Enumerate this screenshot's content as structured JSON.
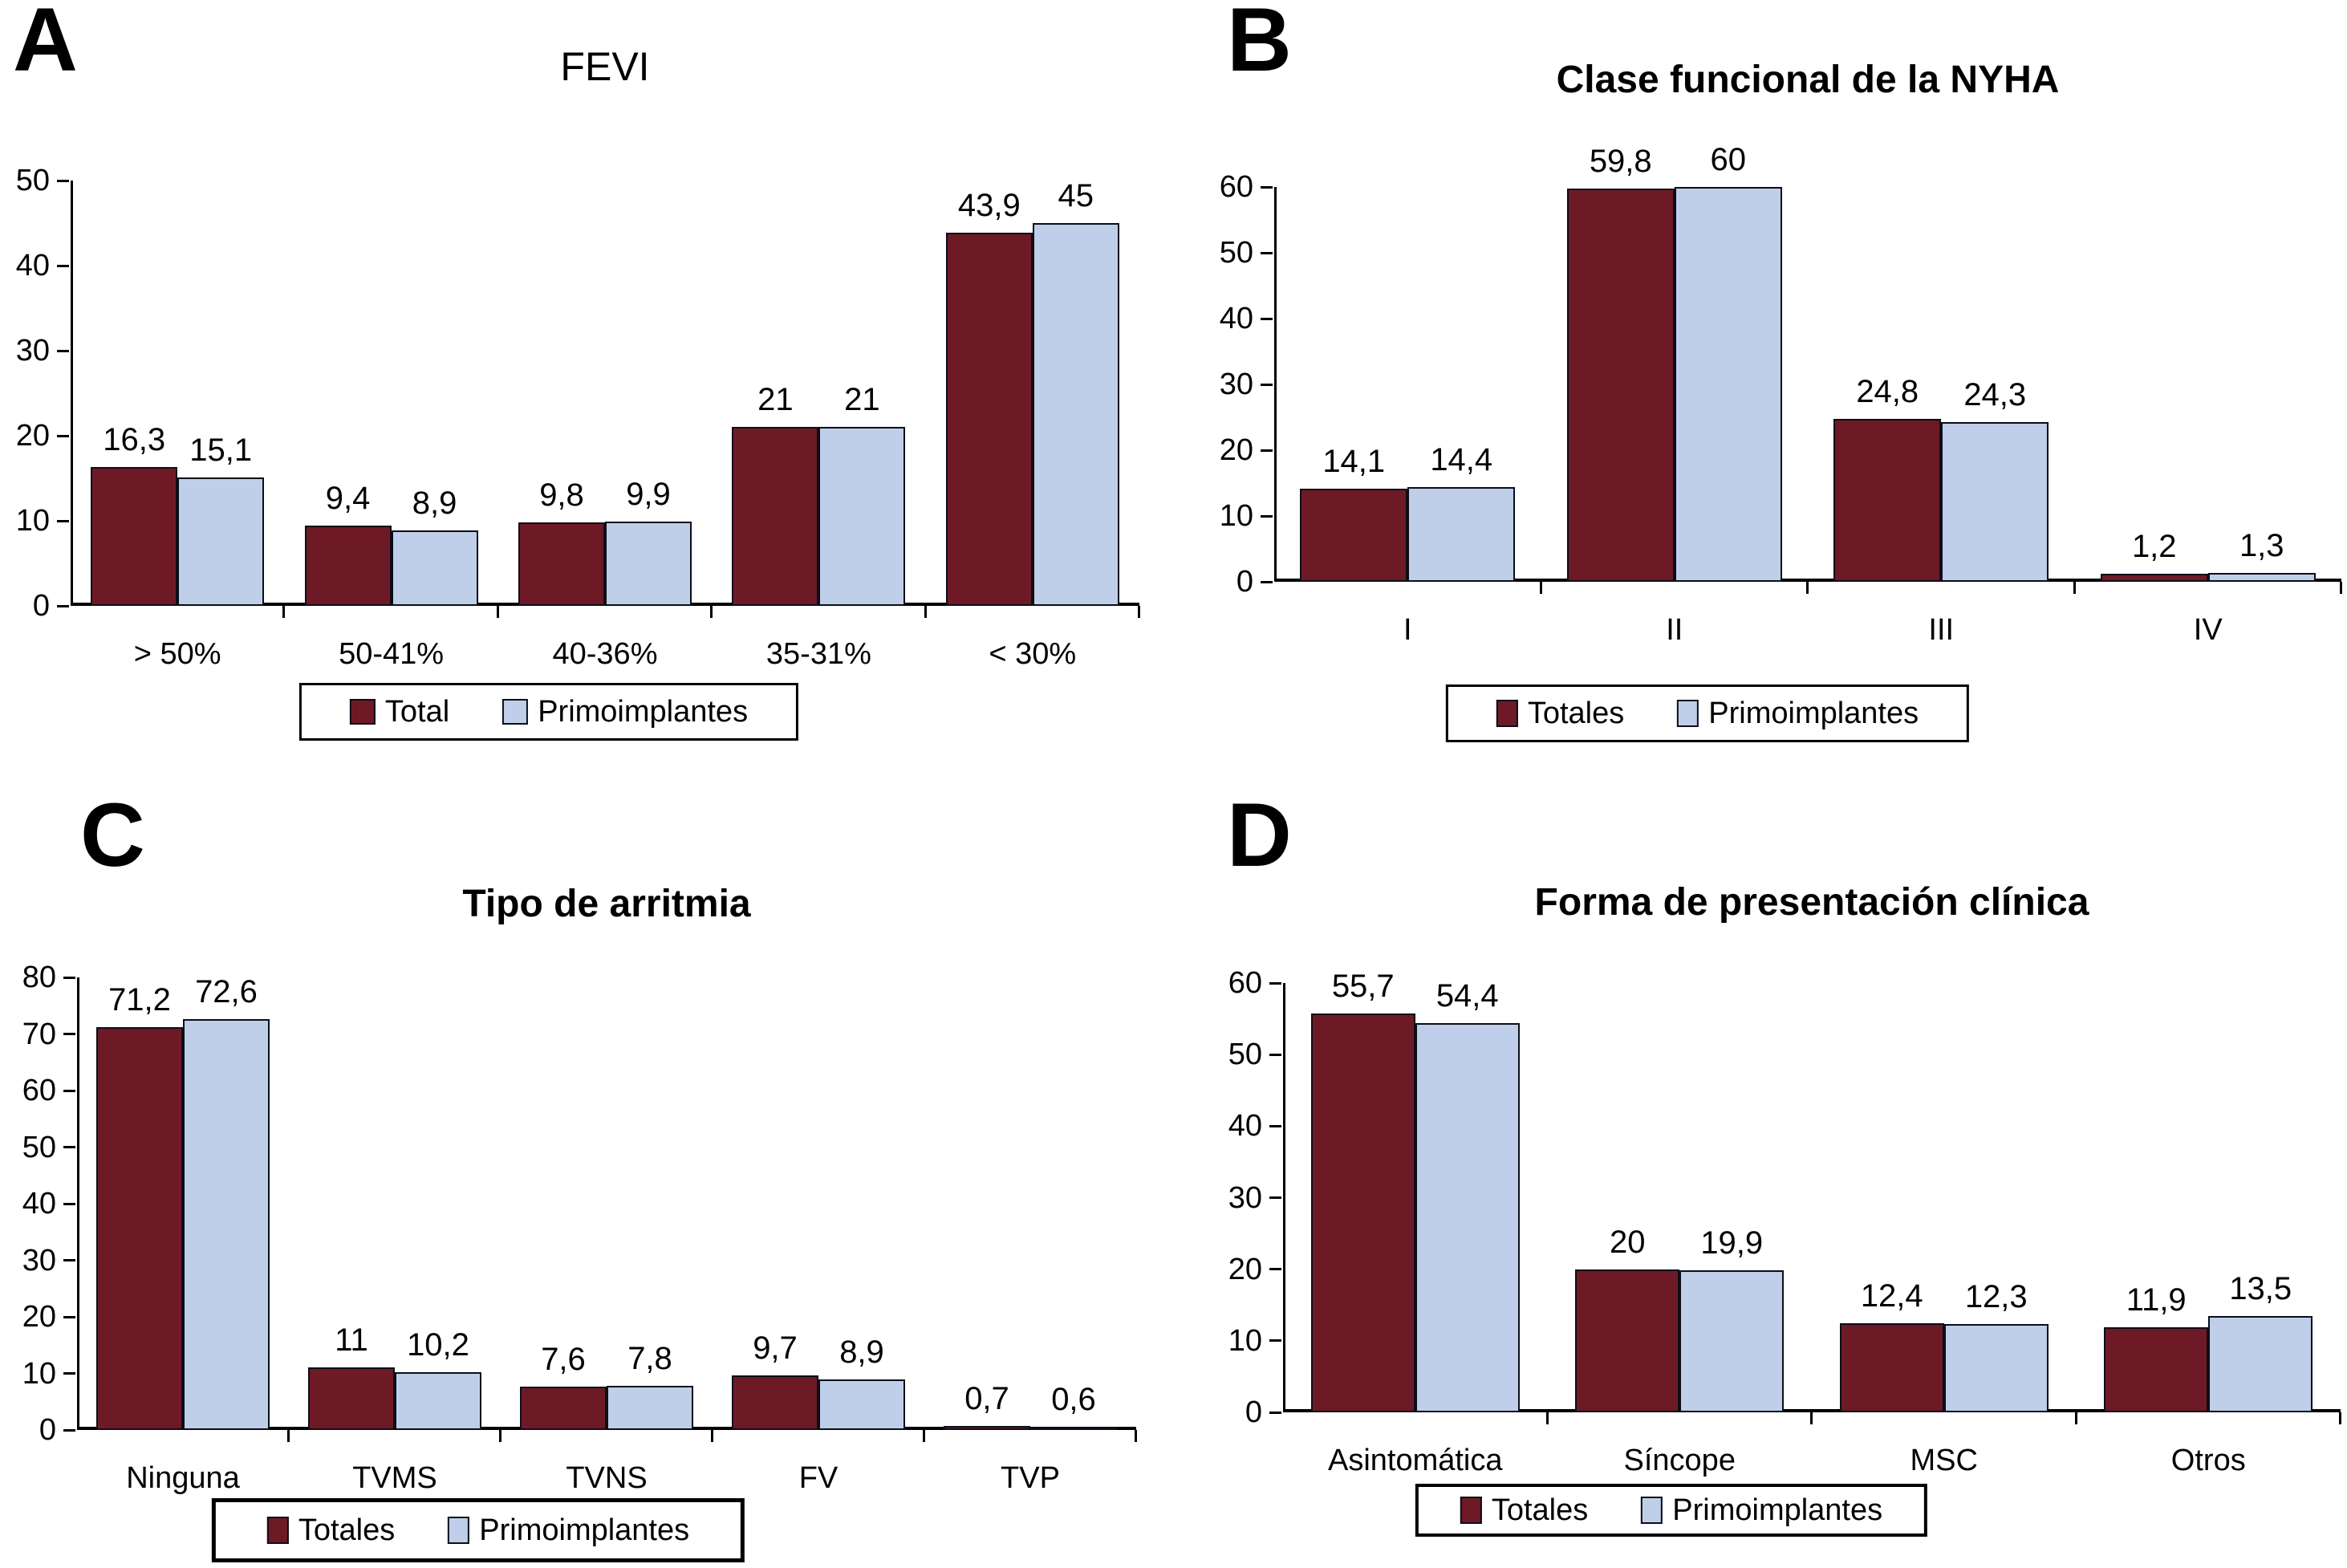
{
  "colors": {
    "totals": "#6E1A26",
    "primoimplantes": "#BFCFEA",
    "bar_border": "#0B0E18",
    "axis": "#000000",
    "text": "#000000",
    "background": "#FFFFFF"
  },
  "chart_data": [
    {
      "panel_label": "A",
      "type": "bar",
      "title": "FEVI",
      "title_bold": false,
      "xlabel": "",
      "ylabel": "",
      "ylim": [
        0,
        50
      ],
      "ytick_step": 10,
      "grid": false,
      "legend_position": "bottom",
      "categories": [
        "> 50%",
        "50-41%",
        "40-36%",
        "35-31%",
        "< 30%"
      ],
      "series": [
        {
          "name": "Total",
          "color_key": "totals",
          "values": [
            16.3,
            9.4,
            9.8,
            21,
            43.9
          ],
          "value_labels": [
            "16,3",
            "9,4",
            "9,8",
            "21",
            "43,9"
          ]
        },
        {
          "name": "Primoimplantes",
          "color_key": "primoimplantes",
          "values": [
            15.1,
            8.9,
            9.9,
            21,
            45
          ],
          "value_labels": [
            "15,1",
            "8,9",
            "9,9",
            "21",
            "45"
          ]
        }
      ],
      "legend": [
        "Total",
        "Primoimplantes"
      ]
    },
    {
      "panel_label": "B",
      "type": "bar",
      "title": "Clase funcional de la NYHA",
      "title_bold": true,
      "xlabel": "",
      "ylabel": "",
      "ylim": [
        0,
        60
      ],
      "ytick_step": 10,
      "grid": false,
      "legend_position": "bottom",
      "categories": [
        "I",
        "II",
        "III",
        "IV"
      ],
      "series": [
        {
          "name": "Totales",
          "color_key": "totals",
          "values": [
            14.1,
            59.8,
            24.8,
            1.2
          ],
          "value_labels": [
            "14,1",
            "59,8",
            "24,8",
            "1,2"
          ]
        },
        {
          "name": "Primoimplantes",
          "color_key": "primoimplantes",
          "values": [
            14.4,
            60,
            24.3,
            1.3
          ],
          "value_labels": [
            "14,4",
            "60",
            "24,3",
            "1,3"
          ]
        }
      ],
      "legend": [
        "Totales",
        "Primoimplantes"
      ]
    },
    {
      "panel_label": "C",
      "type": "bar",
      "title": "Tipo de arritmia",
      "title_bold": true,
      "xlabel": "",
      "ylabel": "",
      "ylim": [
        0,
        80
      ],
      "ytick_step": 10,
      "grid": false,
      "legend_position": "bottom",
      "categories": [
        "Ninguna",
        "TVMS",
        "TVNS",
        "FV",
        "TVP"
      ],
      "series": [
        {
          "name": "Totales",
          "color_key": "totals",
          "values": [
            71.2,
            11,
            7.6,
            9.7,
            0.7
          ],
          "value_labels": [
            "71,2",
            "11",
            "7,6",
            "9,7",
            "0,7"
          ]
        },
        {
          "name": "Primoimplantes",
          "color_key": "primoimplantes",
          "values": [
            72.6,
            10.2,
            7.8,
            8.9,
            0.6
          ],
          "value_labels": [
            "72,6",
            "10,2",
            "7,8",
            "8,9",
            "0,6"
          ]
        }
      ],
      "legend": [
        "Totales",
        "Primoimplantes"
      ]
    },
    {
      "panel_label": "D",
      "type": "bar",
      "title": "Forma de presentación clínica",
      "title_bold": true,
      "xlabel": "",
      "ylabel": "",
      "ylim": [
        0,
        60
      ],
      "ytick_step": 10,
      "grid": false,
      "legend_position": "bottom",
      "categories": [
        "Asintomática",
        "Síncope",
        "MSC",
        "Otros"
      ],
      "series": [
        {
          "name": "Totales",
          "color_key": "totals",
          "values": [
            55.7,
            20,
            12.4,
            11.9
          ],
          "value_labels": [
            "55,7",
            "20",
            "12,4",
            "11,9"
          ]
        },
        {
          "name": "Primoimplantes",
          "color_key": "primoimplantes",
          "values": [
            54.4,
            19.9,
            12.3,
            13.5
          ],
          "value_labels": [
            "54,4",
            "19,9",
            "12,3",
            "13,5"
          ]
        }
      ],
      "legend": [
        "Totales",
        "Primoimplantes"
      ]
    }
  ]
}
